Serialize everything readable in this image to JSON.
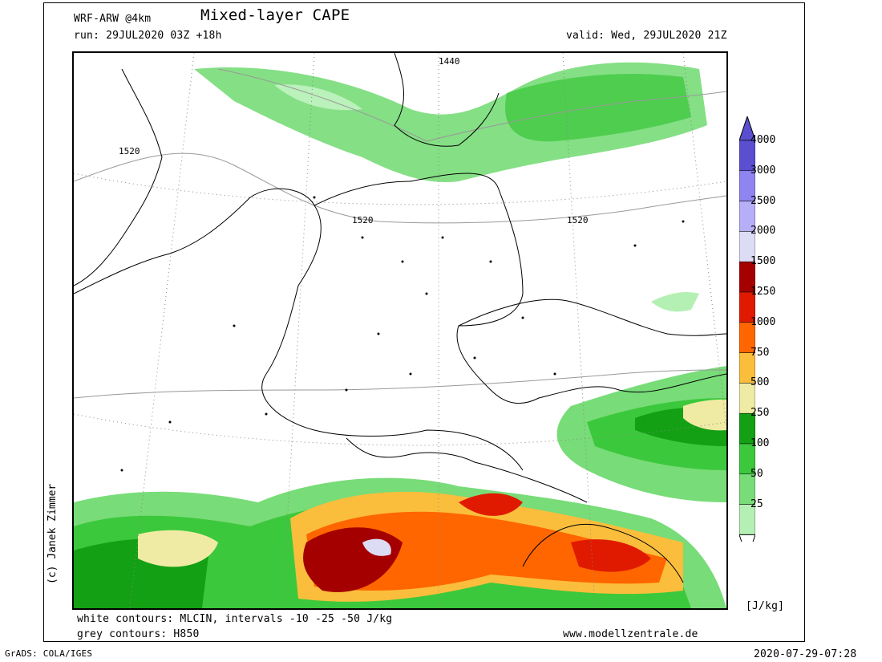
{
  "header": {
    "model": "WRF-ARW @4km",
    "title": "Mixed-layer CAPE",
    "run": "run: 29JUL2020 03Z +18h",
    "valid": "valid: Wed, 29JUL2020 21Z"
  },
  "credit": "(c) Janek Zimmer",
  "footer": {
    "line1": "white contours: MLCIN, intervals -10 -25 -50 J/kg",
    "line2": "grey contours: H850",
    "website": "www.modellzentrale.de",
    "grads": "GrADS: COLA/IGES",
    "timestamp": "2020-07-29-07:28"
  },
  "contour_labels": [
    "1440",
    "1520",
    "1520",
    "1520"
  ],
  "legend": {
    "unit": "[J/kg]",
    "levels": [
      {
        "label": "4000",
        "color": "#5a4fcf"
      },
      {
        "label": "3000",
        "color": "#8f84f0"
      },
      {
        "label": "2500",
        "color": "#b6aef7"
      },
      {
        "label": "2000",
        "color": "#dcdcf5"
      },
      {
        "label": "1500",
        "color": "#a50000"
      },
      {
        "label": "1250",
        "color": "#e01a00"
      },
      {
        "label": "1000",
        "color": "#ff6600"
      },
      {
        "label": "750",
        "color": "#fabe3c"
      },
      {
        "label": "500",
        "color": "#f0eba4"
      },
      {
        "label": "250",
        "color": "#14a014"
      },
      {
        "label": "100",
        "color": "#3cc83c"
      },
      {
        "label": "50",
        "color": "#78dc78"
      },
      {
        "label": "25",
        "color": "#b4f0b4"
      }
    ]
  }
}
